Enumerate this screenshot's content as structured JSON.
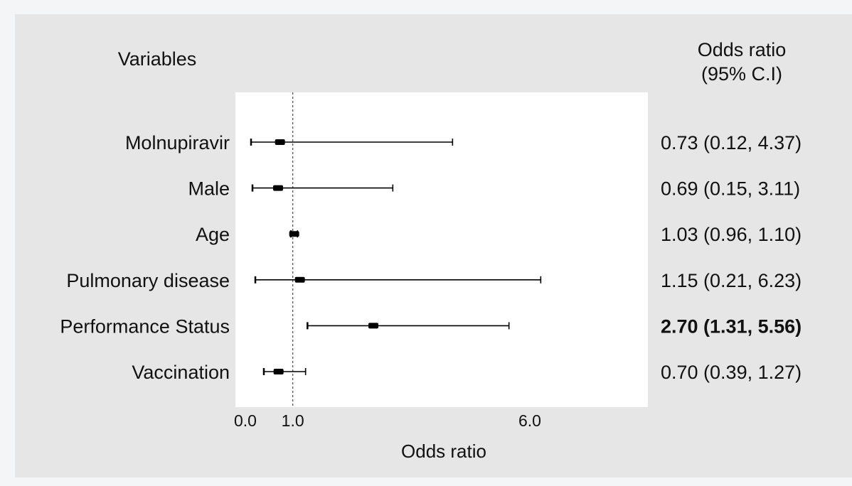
{
  "chart_data": {
    "type": "forest",
    "variables_header": "Variables",
    "or_header_line1": "Odds ratio",
    "or_header_line2": "(95% C.I)",
    "xlabel": "Odds ratio",
    "xlim": [
      0.0,
      7.25
    ],
    "x_ticks": [
      {
        "value": 0.0,
        "label": "0.0"
      },
      {
        "value": 1.0,
        "label": "1.0"
      },
      {
        "value": 6.0,
        "label": "6.0"
      }
    ],
    "reference_line": 1.0,
    "rows": [
      {
        "variable": "Molnupiravir",
        "or": 0.73,
        "lower": 0.12,
        "upper": 4.37,
        "text": "0.73 (0.12, 4.37)",
        "bold": false
      },
      {
        "variable": "Male",
        "or": 0.69,
        "lower": 0.15,
        "upper": 3.11,
        "text": "0.69 (0.15, 3.11)",
        "bold": false
      },
      {
        "variable": "Age",
        "or": 1.03,
        "lower": 0.96,
        "upper": 1.1,
        "text": "1.03 (0.96, 1.10)",
        "bold": false
      },
      {
        "variable": "Pulmonary disease",
        "or": 1.15,
        "lower": 0.21,
        "upper": 6.23,
        "text": "1.15 (0.21, 6.23)",
        "bold": false
      },
      {
        "variable": "Performance Status",
        "or": 2.7,
        "lower": 1.31,
        "upper": 5.56,
        "text": "2.70 (1.31, 5.56)",
        "bold": true
      },
      {
        "variable": "Vaccination",
        "or": 0.7,
        "lower": 0.39,
        "upper": 1.27,
        "text": "0.70 (0.39, 1.27)",
        "bold": false
      }
    ],
    "colors": {
      "panel": "#e6e6e6",
      "plot_area": "#ffffff",
      "marks": "#000000",
      "reference": "#555555"
    }
  }
}
